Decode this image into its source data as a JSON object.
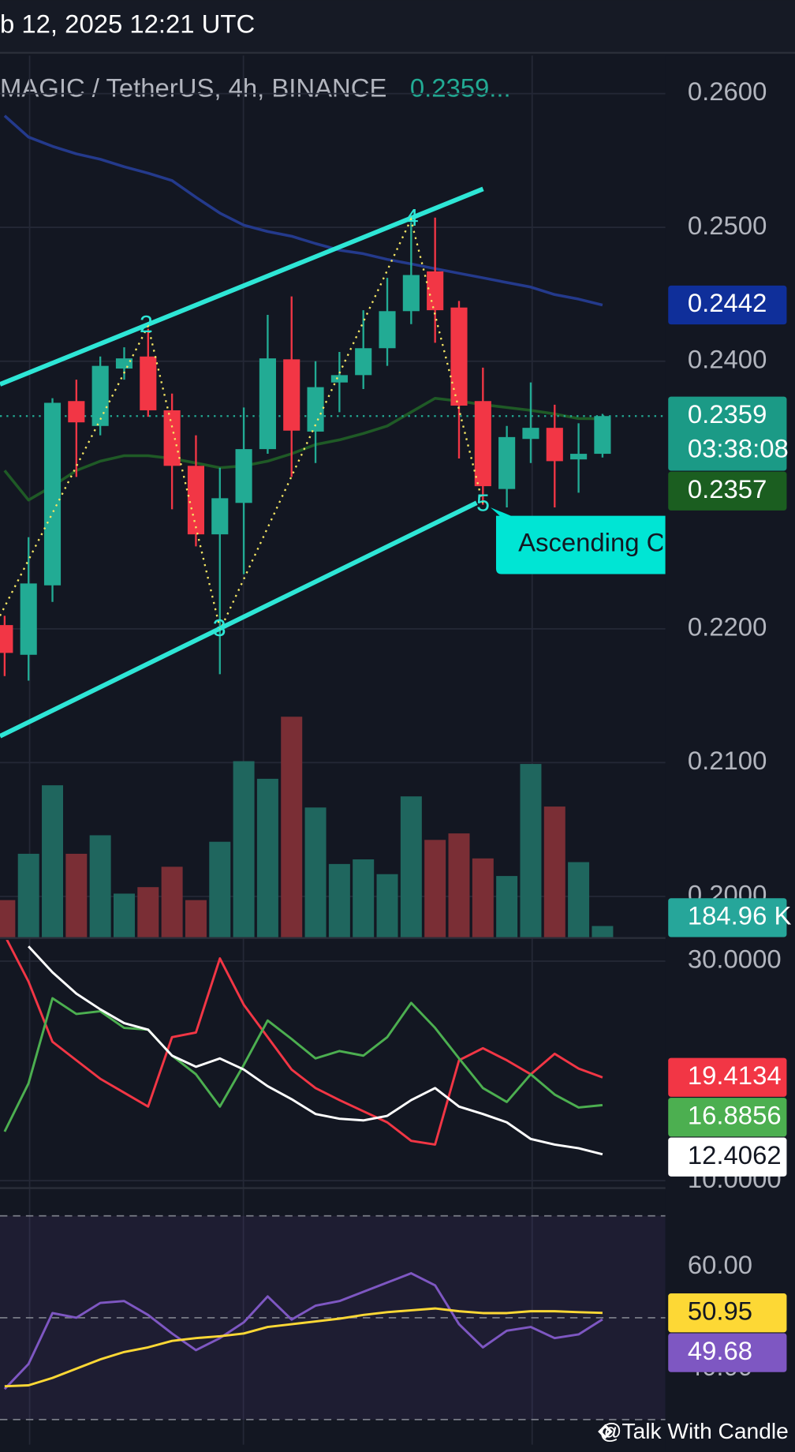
{
  "header": {
    "date": "b 12, 2025 12:21 UTC",
    "symbol": "MAGIC / TetherUS, 4h, BINANCE",
    "last_price": "0.2359...",
    "watermark": "@Talk With Candle"
  },
  "annotations": {
    "waves": [
      "2",
      "3",
      "4",
      "5"
    ],
    "label": "Ascending Channel"
  },
  "chart_data": [
    {
      "type": "candlestick",
      "up_color": "#22ab94",
      "down_color": "#f23645",
      "open": [
        0.22028,
        0.21806,
        0.22325,
        0.23702,
        0.23516,
        0.23945,
        0.24035,
        0.23633,
        0.23218,
        0.22706,
        0.22941,
        0.23343,
        0.24014,
        0.23474,
        0.23841,
        0.23896,
        0.24097,
        0.24374,
        0.24671,
        0.24401,
        0.23702,
        0.23045,
        0.23419,
        0.23502,
        0.23266,
        0.23308
      ],
      "high": [
        0.22097,
        0.22685,
        0.23723,
        0.23862,
        0.24035,
        0.24104,
        0.24242,
        0.23758,
        0.23446,
        0.23204,
        0.23654,
        0.24346,
        0.24484,
        0.24,
        0.24069,
        0.24381,
        0.24623,
        0.25038,
        0.25073,
        0.2445,
        0.23952,
        0.23516,
        0.23841,
        0.23675,
        0.23536,
        0.23606
      ],
      "low": [
        0.21647,
        0.21613,
        0.22201,
        0.23135,
        0.23446,
        0.23862,
        0.23585,
        0.22893,
        0.22616,
        0.21661,
        0.22408,
        0.23308,
        0.23135,
        0.23239,
        0.23619,
        0.23792,
        0.23965,
        0.24277,
        0.24138,
        0.23273,
        0.22927,
        0.22907,
        0.23239,
        0.22907,
        0.23017,
        0.2328
      ],
      "close": [
        0.2182,
        0.22339,
        0.23689,
        0.23543,
        0.23965,
        0.24021,
        0.23633,
        0.23218,
        0.22706,
        0.22976,
        0.23343,
        0.24021,
        0.23481,
        0.23806,
        0.23896,
        0.24097,
        0.24374,
        0.24644,
        0.24381,
        0.23668,
        0.23066,
        0.23433,
        0.23502,
        0.23253,
        0.23308,
        0.2359
      ],
      "countdown": "03:38:08",
      "lines": [
        {
          "color": "#243a8c",
          "values": [
            0.25834,
            0.25675,
            0.25606,
            0.2555,
            0.25509,
            0.25453,
            0.25405,
            0.2535,
            0.25225,
            0.25107,
            0.25017,
            0.24969,
            0.24934,
            0.24879,
            0.2483,
            0.24803,
            0.24761,
            0.24727,
            0.24692,
            0.24657,
            0.24623,
            0.24588,
            0.24554,
            0.24498,
            0.24464,
            0.2442
          ]
        },
        {
          "color": "#1f5a26",
          "values": [
            0.23183,
            0.22962,
            0.23066,
            0.23183,
            0.23253,
            0.23294,
            0.23294,
            0.23273,
            0.23239,
            0.23204,
            0.23218,
            0.23253,
            0.23308,
            0.23377,
            0.23412,
            0.2346,
            0.23516,
            0.2362,
            0.23723,
            0.23702,
            0.23675,
            0.23654,
            0.23633,
            0.23606,
            0.23571,
            0.2357
          ]
        }
      ],
      "ylim": [
        0.19696,
        0.26284
      ],
      "yticks": [
        {
          "value": 0.26,
          "label": "0.2600"
        },
        {
          "value": 0.25,
          "label": "0.2500"
        },
        {
          "value": 0.24,
          "label": "0.2400"
        },
        {
          "value": 0.22,
          "label": "0.2200"
        },
        {
          "value": 0.21,
          "label": "0.2100"
        },
        {
          "value": 0.2,
          "label": "0.2000"
        }
      ],
      "grid": true
    },
    {
      "type": "volume",
      "up_color": "#1f665e",
      "down_color": "#7a2e35",
      "values": [
        616,
        1387,
        2527,
        1387,
        1695,
        724,
        832,
        1171,
        616,
        1587,
        2928,
        2635,
        3668,
        2157,
        1217,
        1294,
        1048,
        2342,
        1618,
        1726,
        1310,
        1017,
        2882,
        2173,
        1248,
        184.96
      ],
      "value_labels": [
        null,
        null,
        null,
        null,
        null,
        null,
        null,
        null,
        null,
        null,
        null,
        null,
        null,
        null,
        null,
        null,
        null,
        null,
        null,
        null,
        null,
        null,
        null,
        null,
        null,
        "184.96 K"
      ],
      "ylim": [
        0,
        14670
      ]
    },
    {
      "type": "line",
      "series": [
        {
          "color": "#f23645",
          "values": [
            32.36,
            28.14,
            22.66,
            20.97,
            19.28,
            18.02,
            16.75,
            23.08,
            23.5,
            30.25,
            26.03,
            23.08,
            20.13,
            18.44,
            17.34,
            16.33,
            15.32,
            13.63,
            13.29,
            20.97,
            22.07,
            20.97,
            19.7,
            21.56,
            20.21,
            19.4134
          ]
        },
        {
          "color": "#4caf50",
          "values": [
            14.47,
            18.86,
            26.62,
            25.19,
            25.44,
            23.92,
            23.76,
            21.39,
            19.7,
            16.75,
            20.55,
            24.6,
            22.91,
            21.14,
            21.81,
            21.39,
            23.08,
            26.2,
            23.92,
            21.14,
            18.44,
            17.17,
            19.7,
            17.85,
            16.67,
            16.8856
          ]
        },
        {
          "color": "#ffffff",
          "values": [
            null,
            31.35,
            28.99,
            27.05,
            25.61,
            24.35,
            23.76,
            21.39,
            20.38,
            21.14,
            20.13,
            18.61,
            17.43,
            16.08,
            15.65,
            15.49,
            15.91,
            17.34,
            18.44,
            16.75,
            16.08,
            15.32,
            13.8,
            13.29,
            12.95,
            12.4062
          ]
        }
      ],
      "ylim": [
        9.41,
        31.94
      ],
      "yticks": [
        {
          "value": 30,
          "label": "30.0000"
        },
        {
          "value": 10,
          "label": "10.0000"
        }
      ]
    },
    {
      "type": "line",
      "band": [
        30,
        70
      ],
      "midline": 50,
      "series": [
        {
          "color": "#7e57c2",
          "values": [
            36,
            40.91,
            50.91,
            50,
            52.91,
            53.27,
            50.55,
            46.91,
            43.64,
            46,
            49.09,
            54.18,
            49.64,
            52.36,
            53.27,
            55.09,
            56.91,
            58.73,
            56.36,
            48.73,
            44.18,
            47.45,
            48.18,
            46,
            46.73,
            49.68
          ]
        },
        {
          "color": "#fdd835",
          "values": [
            36.55,
            36.73,
            38.18,
            40,
            41.82,
            43.27,
            44.18,
            45.45,
            46,
            46.36,
            46.91,
            48.18,
            48.73,
            49.27,
            49.82,
            50.55,
            51.09,
            51.45,
            51.82,
            51.27,
            50.91,
            50.91,
            51.27,
            51.27,
            51.09,
            50.95
          ]
        }
      ],
      "ylim": [
        25.09,
        75.09
      ],
      "yticks": [
        {
          "value": 60,
          "label": "60.00"
        },
        {
          "value": 40,
          "label": "40.00"
        }
      ]
    }
  ]
}
